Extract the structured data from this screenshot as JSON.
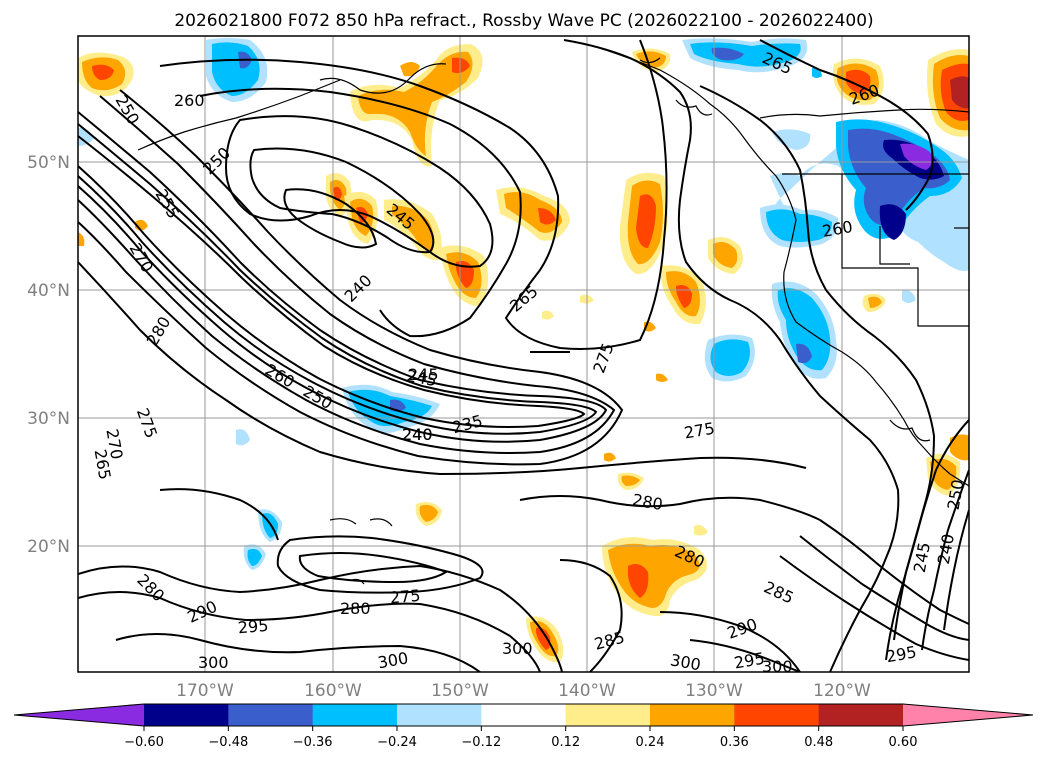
{
  "title": "2026021800 F072 850 hPa refract., Rossby Wave PC (2026022100 - 2026022400)",
  "lat_labels": [
    "50°N",
    "40°N",
    "30°N",
    "20°N"
  ],
  "lon_labels": [
    "170°W",
    "160°W",
    "150°W",
    "140°W",
    "130°W",
    "120°W"
  ],
  "colorbar": {
    "ticks": [
      "−0.60",
      "−0.48",
      "−0.36",
      "−0.24",
      "−0.12",
      "0.12",
      "0.24",
      "0.36",
      "0.48",
      "0.60"
    ],
    "colors": [
      "#8a2be2",
      "#00008b",
      "#3a5fcd",
      "#00bfff",
      "#b0e2ff",
      "#ffffff",
      "#ffec8b",
      "#ffa500",
      "#ff4500",
      "#b22222",
      "#ff82ab"
    ]
  },
  "contour_labels": [
    "250",
    "260",
    "250",
    "255",
    "270",
    "280",
    "275",
    "270",
    "265",
    "245",
    "240",
    "245",
    "240",
    "265",
    "275",
    "260",
    "250",
    "245",
    "235",
    "240",
    "275",
    "280",
    "280",
    "285",
    "290",
    "280",
    "290",
    "295",
    "300",
    "280",
    "275",
    "300",
    "300",
    "285",
    "300",
    "295",
    "300",
    "265",
    "260",
    "260",
    "245",
    "240",
    "295",
    "250"
  ],
  "colors": {
    "warm_core": "#ff4500",
    "warm": "#ffa500",
    "warm_light": "#ffec8b",
    "cold_core": "#00008b",
    "cold": "#00bfff",
    "cold_light": "#b0e2ff"
  }
}
